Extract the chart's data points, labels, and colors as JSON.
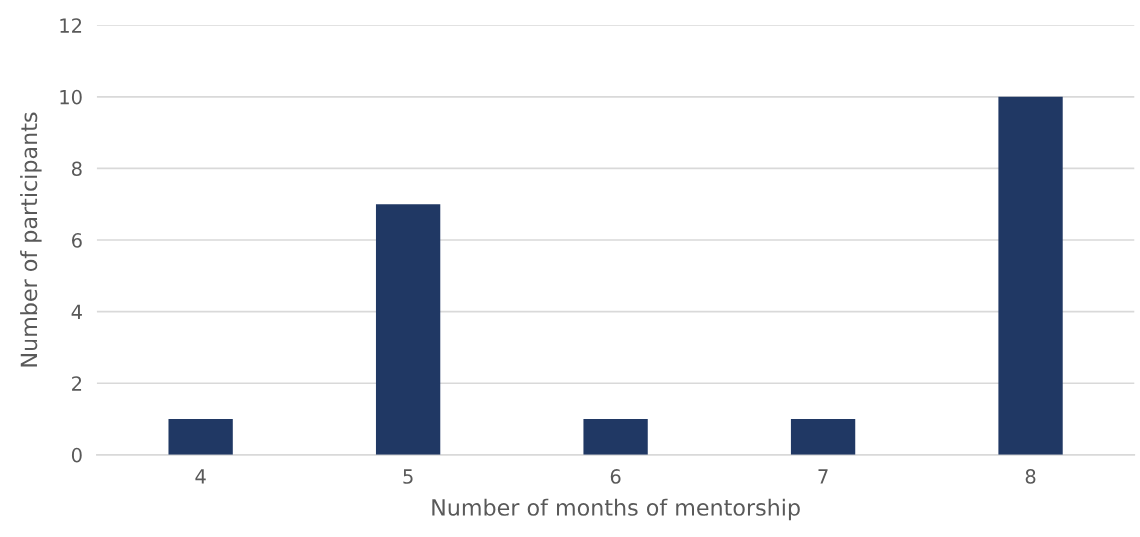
{
  "chart_data": {
    "type": "bar",
    "xlabel": "Number of months of mentorship",
    "ylabel": "Number of participants",
    "categories": [
      "4",
      "5",
      "6",
      "7",
      "8"
    ],
    "values": [
      1,
      7,
      1,
      1,
      10
    ],
    "color": "#203864",
    "ylim": [
      0,
      12
    ],
    "yticks": [
      0,
      2,
      4,
      6,
      8,
      10,
      12
    ],
    "grid": "y"
  }
}
